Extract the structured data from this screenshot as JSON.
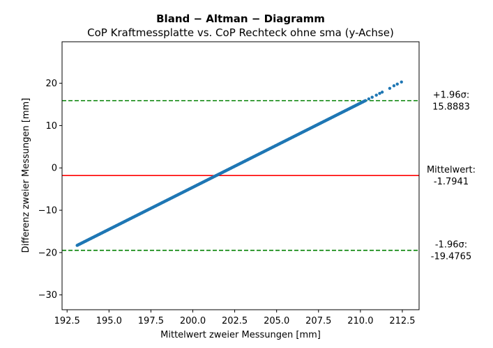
{
  "chart_data": {
    "type": "scatter",
    "title": "Bland − Altman − Diagramm",
    "subtitle": "CoP Kraftmessplatte vs. CoP Rechteck ohne sma (y-Achse)",
    "xlabel": "Mittelwert zweier Messungen [mm]",
    "ylabel": "Differenz zweier Messungen [mm]",
    "xlim": [
      192.2,
      213.5
    ],
    "ylim": [
      -33.5,
      29.8
    ],
    "xticks": [
      192.5,
      195.0,
      197.5,
      200.0,
      202.5,
      205.0,
      207.5,
      210.0,
      212.5
    ],
    "xtick_labels": [
      "192.5",
      "195.0",
      "197.5",
      "200.0",
      "202.5",
      "205.0",
      "207.5",
      "210.0",
      "212.5"
    ],
    "yticks": [
      -30,
      -20,
      -10,
      0,
      10,
      20
    ],
    "ytick_labels": [
      "−30",
      "−20",
      "−10",
      "0",
      "10",
      "20"
    ],
    "grid": false,
    "point_color": "#1f77b4",
    "series_line": {
      "x_start": 193.1,
      "y_start": -18.3,
      "x_end": 210.3,
      "y_end": 15.9,
      "count": 520
    },
    "extra_points": [
      {
        "x": 210.5,
        "y": 16.3
      },
      {
        "x": 210.7,
        "y": 16.7
      },
      {
        "x": 210.95,
        "y": 17.2
      },
      {
        "x": 211.15,
        "y": 17.6
      },
      {
        "x": 211.3,
        "y": 17.9
      },
      {
        "x": 211.75,
        "y": 18.8
      },
      {
        "x": 212.0,
        "y": 19.4
      },
      {
        "x": 212.2,
        "y": 19.8
      },
      {
        "x": 212.45,
        "y": 20.3
      }
    ],
    "reference_lines": [
      {
        "name": "upper-loa",
        "y": 15.8883,
        "color": "#008000",
        "style": "dashed",
        "label_line1": "+1.96σ:",
        "label_line2": "15.8883"
      },
      {
        "name": "mean",
        "y": -1.7941,
        "color": "#ff0000",
        "style": "solid",
        "label_line1": "Mittelwert:",
        "label_line2": "-1.7941"
      },
      {
        "name": "lower-loa",
        "y": -19.4765,
        "color": "#008000",
        "style": "dashed",
        "label_line1": "-1.96σ:",
        "label_line2": "-19.4765"
      }
    ]
  }
}
